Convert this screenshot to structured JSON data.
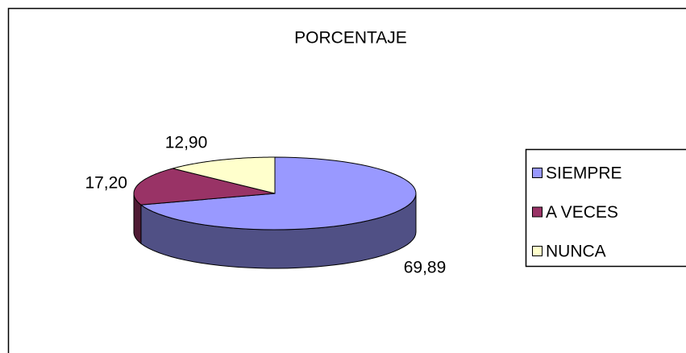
{
  "chart_data": {
    "type": "pie",
    "title": "PORCENTAJE",
    "categories": [
      "SIEMPRE",
      "A VECES",
      "NUNCA"
    ],
    "values": [
      69.89,
      17.2,
      12.9
    ],
    "value_labels": [
      "69,89",
      "17,20",
      "12,90"
    ],
    "colors": [
      "#9999ff",
      "#993366",
      "#ffffcc"
    ],
    "legend": "right"
  }
}
